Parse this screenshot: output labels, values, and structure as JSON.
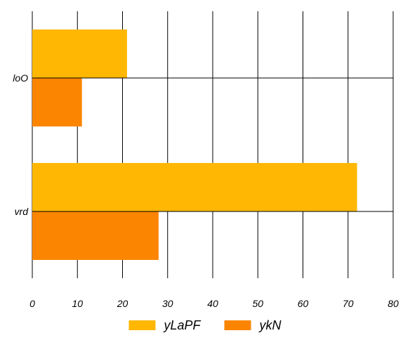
{
  "chart_data": {
    "type": "bar",
    "orientation": "horizontal",
    "title": "",
    "xlabel": "",
    "ylabel": "",
    "categories": [
      "loO",
      "vrd"
    ],
    "series": [
      {
        "name": "yLaPF",
        "values": [
          21,
          72
        ],
        "color": "#FFB703"
      },
      {
        "name": "ykN",
        "values": [
          11,
          28
        ],
        "color": "#FB8500"
      }
    ],
    "xlim": [
      0,
      80
    ],
    "x_ticks": [
      "0",
      "10",
      "20",
      "30",
      "40",
      "50",
      "60",
      "70",
      "80"
    ],
    "grid": true,
    "legend_position": "bottom"
  }
}
